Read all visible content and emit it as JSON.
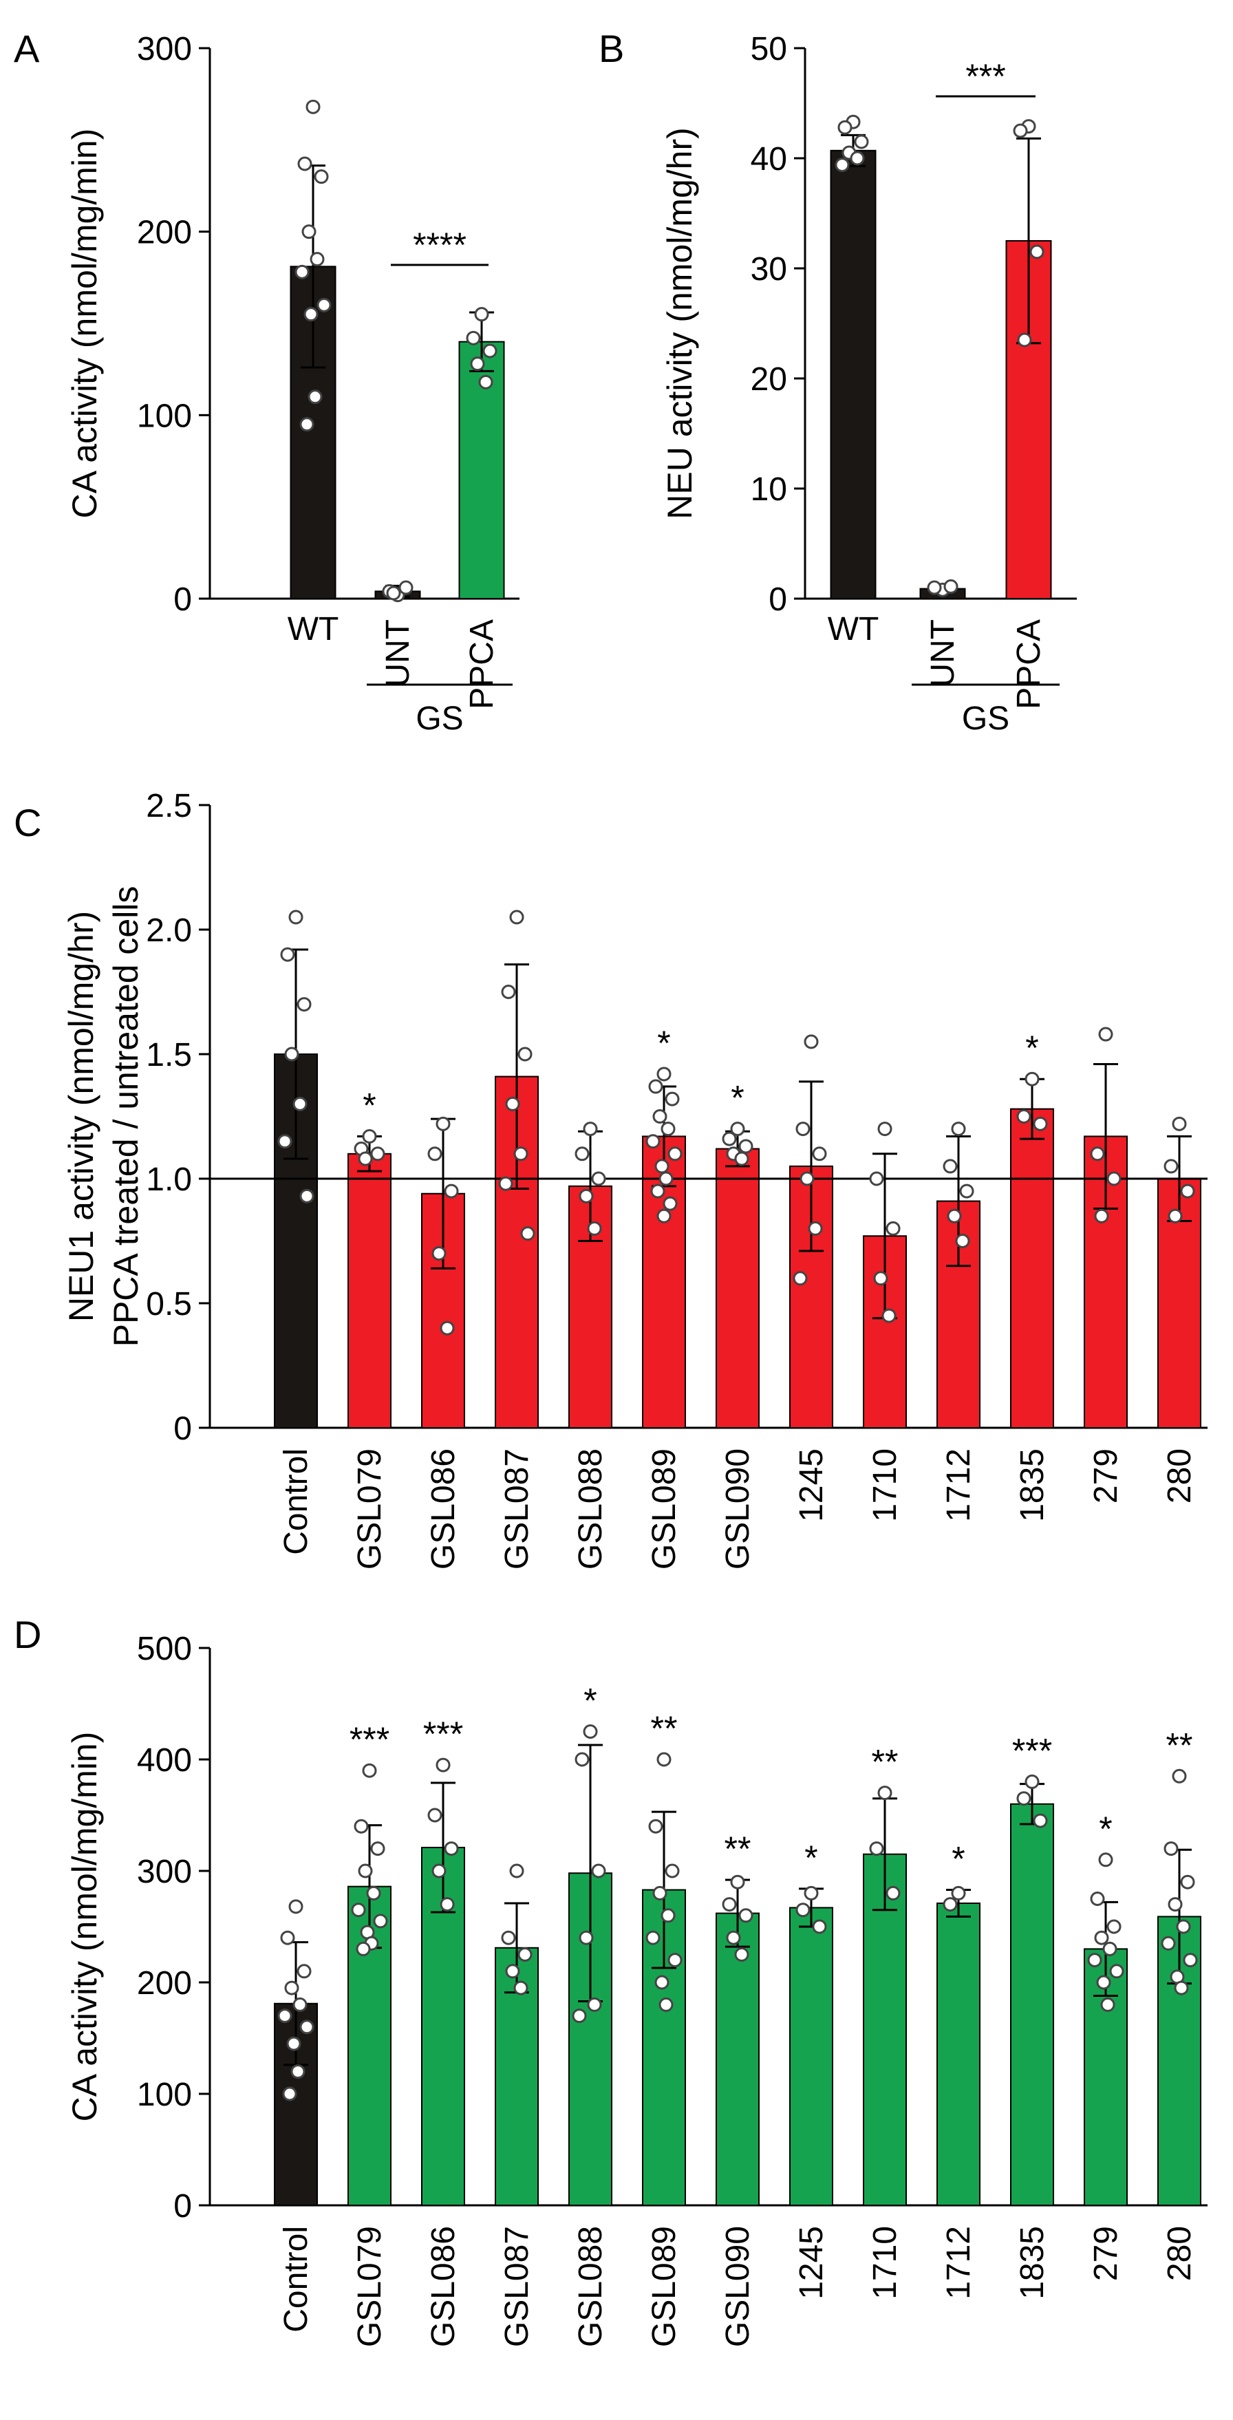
{
  "chart_data": [
    {
      "panel": "A",
      "type": "bar",
      "ylabel": "CA activity (nmol/mg/min)",
      "ylim": [
        0,
        300
      ],
      "yticks": [
        0,
        100,
        200,
        300
      ],
      "categories": [
        "WT",
        "UNT",
        "PPCA"
      ],
      "category_label_rotated": [
        false,
        true,
        true
      ],
      "values": [
        181,
        4,
        140
      ],
      "errors": [
        55,
        3,
        16
      ],
      "colors": [
        "#1a1715",
        "#1a1715",
        "#16a34f"
      ],
      "points": [
        [
          268,
          237,
          230,
          200,
          185,
          178,
          160,
          155,
          110,
          95
        ],
        [
          2,
          4,
          6,
          3
        ],
        [
          155,
          142,
          135,
          128,
          118
        ]
      ],
      "group_label": {
        "text": "GS",
        "categories": [
          "UNT",
          "PPCA"
        ]
      },
      "significance": [
        {
          "from": "UNT",
          "to": "PPCA",
          "stars": "****"
        }
      ]
    },
    {
      "panel": "B",
      "type": "bar",
      "ylabel": "NEU activity (nmol/mg/hr)",
      "ylim": [
        0,
        50
      ],
      "yticks": [
        0,
        10,
        20,
        30,
        40,
        50
      ],
      "categories": [
        "WT",
        "UNT",
        "PPCA"
      ],
      "category_label_rotated": [
        false,
        true,
        true
      ],
      "values": [
        40.7,
        0.9,
        32.5
      ],
      "errors": [
        1.4,
        0.3,
        9.3
      ],
      "colors": [
        "#1a1715",
        "#1a1715",
        "#ee1c25"
      ],
      "points": [
        [
          43.3,
          42.8,
          41.5,
          40.5,
          40.0,
          39.4
        ],
        [
          0.8,
          1.0,
          1.1
        ],
        [
          42.9,
          42.5,
          31.5,
          23.5
        ]
      ],
      "group_label": {
        "text": "GS",
        "categories": [
          "UNT",
          "PPCA"
        ]
      },
      "significance": [
        {
          "from": "UNT",
          "to": "PPCA",
          "stars": "***"
        }
      ]
    },
    {
      "panel": "C",
      "type": "bar",
      "ylabel": [
        "NEU1 activity (nmol/mg/hr)",
        "PPCA treated / untreated cells"
      ],
      "ylim": [
        0,
        2.5
      ],
      "yticks": [
        "0",
        "0.5",
        "1.0",
        "1.5",
        "2.0",
        "2.5"
      ],
      "reference_line": 1.0,
      "categories": [
        "Control",
        "GSL079",
        "GSL086",
        "GSL087",
        "GSL088",
        "GSL089",
        "GSL090",
        "1245",
        "1710",
        "1712",
        "1835",
        "279",
        "280"
      ],
      "values": [
        1.5,
        1.1,
        0.94,
        1.41,
        0.97,
        1.17,
        1.12,
        1.05,
        0.77,
        0.91,
        1.28,
        1.17,
        1.0
      ],
      "errors": [
        0.42,
        0.07,
        0.3,
        0.45,
        0.22,
        0.2,
        0.07,
        0.34,
        0.33,
        0.26,
        0.12,
        0.29,
        0.17
      ],
      "colors": [
        "#1a1715",
        "#ee1c25",
        "#ee1c25",
        "#ee1c25",
        "#ee1c25",
        "#ee1c25",
        "#ee1c25",
        "#ee1c25",
        "#ee1c25",
        "#ee1c25",
        "#ee1c25",
        "#ee1c25",
        "#ee1c25"
      ],
      "points": [
        [
          2.05,
          1.9,
          1.7,
          1.5,
          1.3,
          1.15,
          0.93
        ],
        [
          1.17,
          1.12,
          1.1,
          1.08
        ],
        [
          1.22,
          1.1,
          0.95,
          0.7,
          0.4
        ],
        [
          2.05,
          1.75,
          1.5,
          1.3,
          1.1,
          0.98,
          0.78
        ],
        [
          1.2,
          1.1,
          1.0,
          0.93,
          0.8
        ],
        [
          1.42,
          1.37,
          1.32,
          1.25,
          1.2,
          1.15,
          1.1,
          1.05,
          1.0,
          0.95,
          0.9,
          0.85
        ],
        [
          1.2,
          1.16,
          1.13,
          1.1,
          1.08
        ],
        [
          1.55,
          1.2,
          1.1,
          1.0,
          0.8,
          0.6
        ],
        [
          1.2,
          1.0,
          0.8,
          0.6,
          0.45
        ],
        [
          1.2,
          1.05,
          0.95,
          0.85,
          0.75
        ],
        [
          1.4,
          1.25,
          1.22
        ],
        [
          1.58,
          1.1,
          1.0,
          0.85
        ],
        [
          1.22,
          1.05,
          0.95,
          0.85
        ]
      ],
      "significance_labels": [
        "",
        "*",
        "",
        "",
        "",
        "*",
        "*",
        "",
        "",
        "",
        "*",
        "",
        ""
      ]
    },
    {
      "panel": "D",
      "type": "bar",
      "ylabel": "CA activity (nmol/mg/min)",
      "ylim": [
        0,
        500
      ],
      "yticks": [
        0,
        100,
        200,
        300,
        400,
        500
      ],
      "categories": [
        "Control",
        "GSL079",
        "GSL086",
        "GSL087",
        "GSL088",
        "GSL089",
        "GSL090",
        "1245",
        "1710",
        "1712",
        "1835",
        "279",
        "280"
      ],
      "values": [
        181,
        286,
        321,
        231,
        298,
        283,
        262,
        267,
        315,
        271,
        360,
        230,
        259
      ],
      "errors": [
        55,
        55,
        58,
        40,
        115,
        70,
        30,
        17,
        50,
        12,
        18,
        42,
        60
      ],
      "colors": [
        "#1a1715",
        "#16a34f",
        "#16a34f",
        "#16a34f",
        "#16a34f",
        "#16a34f",
        "#16a34f",
        "#16a34f",
        "#16a34f",
        "#16a34f",
        "#16a34f",
        "#16a34f",
        "#16a34f"
      ],
      "points": [
        [
          268,
          240,
          210,
          195,
          180,
          170,
          160,
          145,
          120,
          100
        ],
        [
          390,
          340,
          320,
          300,
          280,
          265,
          255,
          245,
          235,
          230
        ],
        [
          395,
          350,
          320,
          300,
          270
        ],
        [
          300,
          240,
          225,
          210,
          195
        ],
        [
          425,
          400,
          300,
          240,
          180,
          170
        ],
        [
          400,
          340,
          300,
          280,
          260,
          240,
          220,
          200,
          180
        ],
        [
          290,
          270,
          260,
          240,
          225
        ],
        [
          280,
          265,
          250
        ],
        [
          370,
          320,
          280
        ],
        [
          280,
          270
        ],
        [
          380,
          365,
          345
        ],
        [
          310,
          275,
          250,
          240,
          230,
          220,
          210,
          200,
          180
        ],
        [
          385,
          320,
          290,
          270,
          250,
          235,
          220,
          205,
          195
        ]
      ],
      "significance_labels": [
        "",
        "***",
        "***",
        "",
        "*",
        "**",
        "**",
        "*",
        "**",
        "*",
        "***",
        "*",
        "**"
      ]
    }
  ]
}
